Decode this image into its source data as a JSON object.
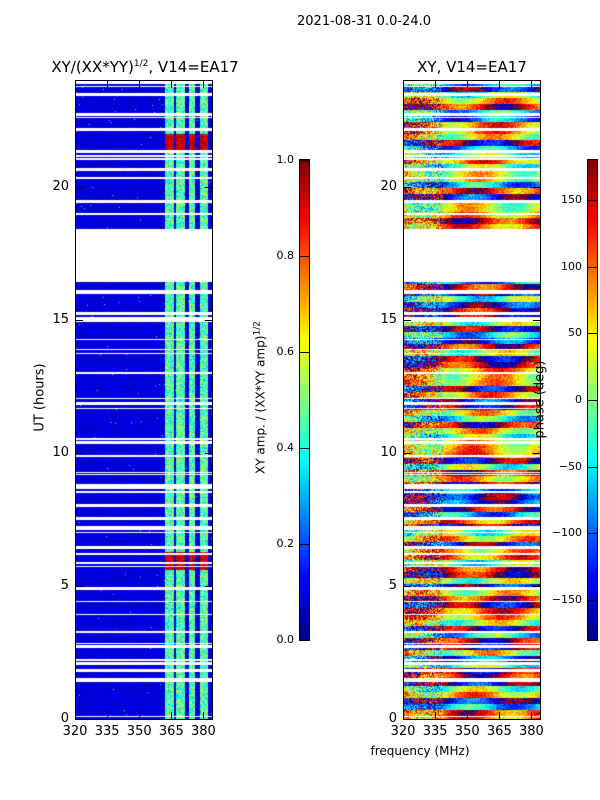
{
  "suptitle": "2021-08-31 0.0-24.0",
  "xlabel_shared": "frequency (MHz)",
  "chart_data": [
    {
      "type": "heatmap",
      "title": "XY/(XX*YY)",
      "title_exp": "1/2",
      "title_suffix": ", V14=EA17",
      "xlabel": "frequency (MHz)",
      "ylabel": "UT (hours)",
      "xlim": [
        320,
        384
      ],
      "ylim": [
        0,
        24
      ],
      "xticks": [
        "320",
        "335",
        "350",
        "365",
        "380"
      ],
      "xtick_values": [
        320,
        335,
        350,
        365,
        380
      ],
      "yticks": [
        "0",
        "5",
        "10",
        "15",
        "20"
      ],
      "ytick_values": [
        0,
        5,
        10,
        15,
        20
      ],
      "colormap": "jet",
      "colorbar": {
        "label": "XY amp. / (XX*YY amp)",
        "label_exp": "1/2",
        "range": [
          0,
          1
        ],
        "ticks": [
          "0.0",
          "0.2",
          "0.4",
          "0.6",
          "0.8",
          "1.0"
        ],
        "tick_values": [
          0,
          0.2,
          0.4,
          0.6,
          0.8,
          1.0
        ]
      },
      "background_value": 0.05,
      "bright_bands_mhz": [
        [
          362,
          366
        ],
        [
          367,
          371
        ],
        [
          373,
          376
        ],
        [
          378,
          382
        ]
      ],
      "band_value": 0.45,
      "high_value_hours": [
        [
          21.4,
          22.0
        ],
        [
          5.6,
          6.3
        ]
      ],
      "flagged_hours": [
        [
          16.4,
          18.4
        ]
      ]
    },
    {
      "type": "heatmap",
      "title": "XY, V14=EA17",
      "xlabel": "frequency (MHz)",
      "xlim": [
        320,
        384
      ],
      "ylim": [
        0,
        24
      ],
      "xticks": [
        "320",
        "335",
        "350",
        "365",
        "380"
      ],
      "xtick_values": [
        320,
        335,
        350,
        365,
        380
      ],
      "yticks": [
        "0",
        "5",
        "10",
        "15",
        "20"
      ],
      "ytick_values": [
        0,
        5,
        10,
        15,
        20
      ],
      "colormap": "jet",
      "colorbar": {
        "label": "phase (deg)",
        "range": [
          -180,
          180
        ],
        "ticks": [
          "150",
          "100",
          "50",
          "0",
          "−50",
          "−100",
          "−150"
        ],
        "tick_values": [
          150,
          100,
          50,
          0,
          -50,
          -100,
          -150
        ]
      },
      "flagged_hours": [
        [
          16.4,
          18.4
        ]
      ]
    }
  ]
}
